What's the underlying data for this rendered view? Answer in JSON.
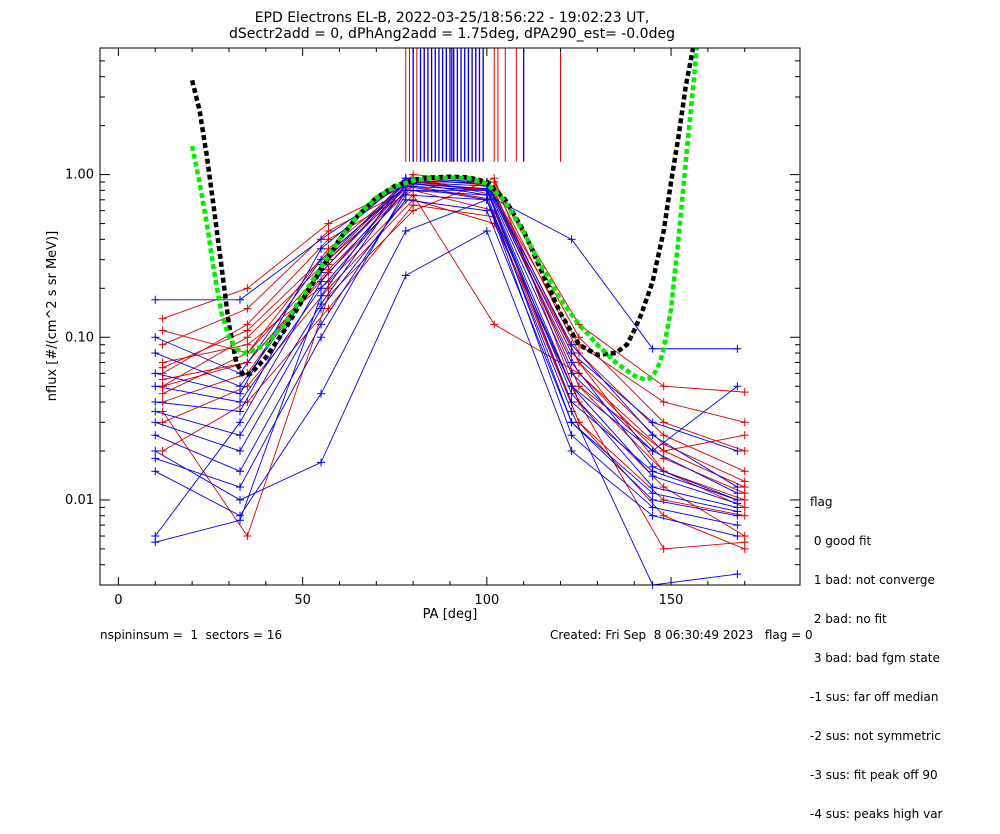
{
  "chart_data": {
    "type": "line",
    "title_line1": "EPD Electrons EL-B, 2022-03-25/18:56:22 - 19:02:23 UT,",
    "title_line2": "dSectr2add = 0, dPhAng2add = 1.75deg, dPA290_est=  -0.0deg",
    "xlabel": "PA [deg]",
    "ylabel": "nflux [#/(cm^2 s sr MeV)]",
    "xlim": [
      -5,
      185
    ],
    "ylim": [
      0.003,
      6.0
    ],
    "yscale": "log",
    "x_ticks": [
      0,
      50,
      100,
      150
    ],
    "x_tick_labels": [
      "0",
      "50",
      "100",
      "150"
    ],
    "y_ticks": [
      0.01,
      0.1,
      1.0
    ],
    "y_tick_labels": [
      "0.01",
      "0.10",
      "1.00"
    ],
    "grid": false,
    "colors": {
      "red": "#dd0000",
      "blue": "#0000ee",
      "black": "#000000",
      "green": "#00ee00"
    },
    "pa_bins": [
      10,
      33,
      55,
      78,
      100,
      123,
      145,
      168
    ],
    "pa_bins_red": [
      12,
      35,
      57,
      80,
      102,
      125,
      148,
      170
    ],
    "red_curves": [
      [
        0.05,
        0.07,
        0.25,
        0.85,
        0.7,
        0.07,
        0.015,
        0.009
      ],
      [
        0.04,
        0.06,
        0.3,
        0.9,
        0.8,
        0.05,
        0.02,
        0.012
      ],
      [
        0.11,
        0.08,
        0.35,
        0.95,
        0.75,
        0.09,
        0.04,
        0.03
      ],
      [
        0.06,
        0.12,
        0.4,
        0.8,
        0.6,
        0.03,
        0.01,
        0.008
      ],
      [
        0.03,
        0.05,
        0.2,
        0.7,
        0.5,
        0.04,
        0.012,
        0.006
      ],
      [
        0.13,
        0.2,
        0.5,
        0.9,
        0.9,
        0.12,
        0.05,
        0.046
      ],
      [
        0.07,
        0.09,
        0.22,
        0.75,
        0.12,
        0.06,
        0.02,
        0.025
      ],
      [
        0.02,
        0.04,
        0.15,
        0.65,
        0.55,
        0.03,
        0.008,
        0.005
      ],
      [
        0.05,
        0.1,
        0.3,
        1.0,
        0.9,
        0.1,
        0.03,
        0.02
      ],
      [
        0.045,
        0.08,
        0.28,
        0.95,
        0.85,
        0.08,
        0.025,
        0.015
      ],
      [
        0.09,
        0.15,
        0.45,
        0.85,
        0.7,
        0.06,
        0.018,
        0.011
      ],
      [
        0.035,
        0.006,
        0.18,
        0.6,
        0.95,
        0.04,
        0.005,
        0.0055
      ],
      [
        0.055,
        0.07,
        0.26,
        0.88,
        0.8,
        0.05,
        0.015,
        0.01
      ],
      [
        0.065,
        0.11,
        0.33,
        0.92,
        0.78,
        0.07,
        0.022,
        0.013
      ]
    ],
    "blue_curves": [
      [
        0.17,
        0.17,
        0.4,
        0.9,
        0.75,
        0.4,
        0.085,
        0.085
      ],
      [
        0.1,
        0.06,
        0.3,
        0.85,
        0.7,
        0.05,
        0.02,
        0.05
      ],
      [
        0.05,
        0.04,
        0.2,
        0.8,
        0.8,
        0.04,
        0.015,
        0.01
      ],
      [
        0.03,
        0.02,
        0.15,
        0.7,
        0.6,
        0.03,
        0.01,
        0.008
      ],
      [
        0.02,
        0.01,
        0.017,
        0.24,
        0.45,
        0.02,
        0.008,
        0.006
      ],
      [
        0.08,
        0.05,
        0.25,
        0.9,
        0.85,
        0.06,
        0.02,
        0.011
      ],
      [
        0.015,
        0.008,
        0.045,
        0.45,
        0.7,
        0.035,
        0.003,
        0.0035
      ],
      [
        0.0055,
        0.0075,
        0.18,
        0.95,
        0.9,
        0.08,
        0.03,
        0.02
      ],
      [
        0.006,
        0.03,
        0.22,
        0.85,
        0.8,
        0.045,
        0.012,
        0.009
      ],
      [
        0.04,
        0.035,
        0.28,
        0.92,
        0.88,
        0.07,
        0.016,
        0.01
      ],
      [
        0.025,
        0.015,
        0.12,
        0.75,
        0.7,
        0.025,
        0.009,
        0.007
      ],
      [
        0.06,
        0.045,
        0.35,
        0.95,
        0.9,
        0.09,
        0.025,
        0.012
      ],
      [
        0.018,
        0.012,
        0.1,
        0.8,
        0.75,
        0.03,
        0.011,
        0.0085
      ],
      [
        0.035,
        0.025,
        0.16,
        0.88,
        0.82,
        0.05,
        0.014,
        0.0095
      ]
    ],
    "fit_black": {
      "x": [
        20,
        22,
        24,
        26,
        28,
        30,
        32,
        34,
        36,
        40,
        45,
        50,
        55,
        60,
        65,
        70,
        75,
        80,
        85,
        90,
        95,
        100,
        105,
        110,
        115,
        120,
        125,
        130,
        135,
        138,
        140,
        142,
        145,
        148,
        150,
        152,
        154,
        156
      ],
      "y": [
        3.8,
        2.5,
        1.3,
        0.6,
        0.27,
        0.12,
        0.07,
        0.058,
        0.06,
        0.075,
        0.11,
        0.17,
        0.26,
        0.4,
        0.56,
        0.72,
        0.85,
        0.93,
        0.96,
        0.97,
        0.96,
        0.9,
        0.7,
        0.45,
        0.25,
        0.14,
        0.09,
        0.078,
        0.08,
        0.09,
        0.11,
        0.14,
        0.22,
        0.45,
        0.9,
        1.7,
        3.5,
        6.0
      ]
    },
    "fit_green": {
      "x": [
        20,
        22,
        24,
        26,
        28,
        30,
        32,
        34,
        36,
        40,
        45,
        50,
        55,
        60,
        65,
        70,
        75,
        80,
        85,
        90,
        95,
        100,
        105,
        110,
        115,
        120,
        125,
        130,
        135,
        140,
        143,
        145,
        147,
        148,
        150,
        152,
        154,
        156,
        157
      ],
      "y": [
        1.5,
        0.9,
        0.5,
        0.25,
        0.14,
        0.1,
        0.085,
        0.08,
        0.082,
        0.09,
        0.12,
        0.18,
        0.27,
        0.4,
        0.56,
        0.72,
        0.84,
        0.92,
        0.95,
        0.96,
        0.95,
        0.88,
        0.68,
        0.44,
        0.27,
        0.17,
        0.12,
        0.09,
        0.07,
        0.058,
        0.055,
        0.057,
        0.07,
        0.085,
        0.15,
        0.4,
        1.2,
        3.5,
        6.0
      ]
    },
    "vlines_red_x": [
      78,
      79,
      80,
      81,
      82,
      83,
      85,
      87,
      89,
      91,
      93,
      95,
      96,
      97,
      99,
      102,
      103,
      105,
      108,
      120
    ],
    "vlines_blue_x": [
      80,
      82,
      83,
      84,
      85,
      86,
      87,
      88,
      89,
      90,
      90.5,
      91,
      92,
      93,
      94,
      95,
      96,
      97,
      98,
      99,
      110
    ],
    "vlines_top_y": 6.0,
    "vlines_bottom_y": 1.2,
    "footer_left": "nspininsum =  1  sectors = 16",
    "footer_right": "Created: Fri Sep  8 06:30:49 2023   flag = 0",
    "legend": {
      "title": "flag",
      "items": [
        " 0 good fit",
        " 1 bad: not converge",
        " 2 bad: no fit",
        " 3 bad: bad fgm state",
        "-1 sus: far off median",
        "-2 sus: not symmetric",
        "-3 sus: fit peak off 90",
        "-4 sus: peaks high var"
      ]
    }
  }
}
